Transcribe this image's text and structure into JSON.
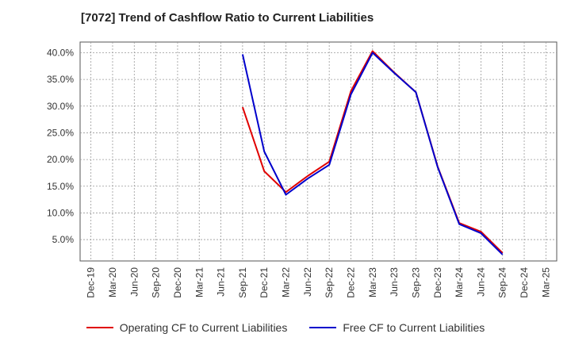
{
  "chart_data": {
    "type": "line",
    "title": "[7072]  Trend of Cashflow Ratio to Current Liabilities",
    "xlabel": "",
    "ylabel": "",
    "categories": [
      "Dec-19",
      "Mar-20",
      "Jun-20",
      "Sep-20",
      "Dec-20",
      "Mar-21",
      "Jun-21",
      "Sep-21",
      "Dec-21",
      "Mar-22",
      "Jun-22",
      "Sep-22",
      "Dec-22",
      "Mar-23",
      "Jun-23",
      "Sep-23",
      "Dec-23",
      "Mar-24",
      "Jun-24",
      "Sep-24",
      "Dec-24",
      "Mar-25"
    ],
    "y_ticks": [
      "5.0%",
      "10.0%",
      "15.0%",
      "20.0%",
      "25.0%",
      "30.0%",
      "35.0%",
      "40.0%"
    ],
    "ylim": [
      1,
      42
    ],
    "grid": true,
    "legend_position": "bottom",
    "series": [
      {
        "name": "Operating CF to Current Liabilities",
        "color": "#e00000",
        "values": [
          null,
          null,
          null,
          null,
          null,
          null,
          null,
          29.8,
          17.8,
          13.9,
          16.9,
          19.6,
          32.8,
          40.3,
          36.3,
          32.6,
          18.7,
          8.1,
          6.5,
          2.5,
          null,
          null
        ]
      },
      {
        "name": "Free CF to Current Liabilities",
        "color": "#0000cc",
        "values": [
          null,
          null,
          null,
          null,
          null,
          null,
          null,
          39.7,
          21.5,
          13.4,
          16.4,
          19.0,
          32.2,
          40.0,
          36.2,
          32.6,
          18.6,
          7.9,
          6.2,
          2.2,
          null,
          null
        ]
      }
    ]
  }
}
